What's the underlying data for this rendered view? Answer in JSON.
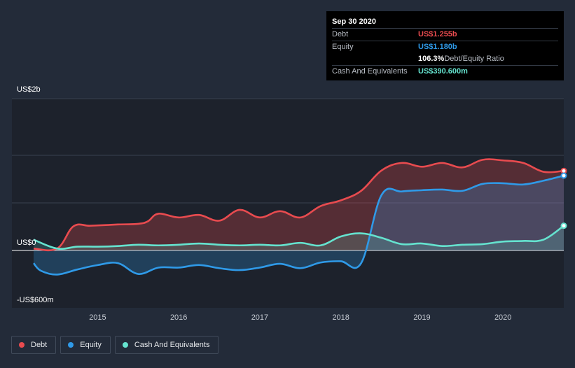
{
  "colors": {
    "debt": "#e84b4f",
    "equity": "#2f9ae8",
    "cash": "#65e3cf",
    "background": "#232b39",
    "plot_background": "#1d222c"
  },
  "tooltip": {
    "date": "Sep 30 2020",
    "rows": [
      {
        "label": "Debt",
        "value": "US$1.255b",
        "color": "#e84b4f"
      },
      {
        "label": "Equity",
        "value": "US$1.180b",
        "color": "#2f9ae8"
      },
      {
        "label": "",
        "value": "106.3%",
        "suffix": " Debt/Equity Ratio",
        "color": "#ffffff"
      },
      {
        "label": "Cash And Equivalents",
        "value": "US$390.600m",
        "color": "#65e3cf"
      }
    ]
  },
  "legend": [
    {
      "label": "Debt",
      "color": "#e84b4f"
    },
    {
      "label": "Equity",
      "color": "#2f9ae8"
    },
    {
      "label": "Cash And Equivalents",
      "color": "#65e3cf"
    }
  ],
  "chart_data": {
    "type": "area",
    "y_tick_labels": [
      "US$2b",
      "US$0",
      "-US$600m"
    ],
    "y_ticks": [
      2000,
      0,
      -600
    ],
    "ylim": [
      -600,
      1600
    ],
    "xlim": [
      2014.21,
      2020.75
    ],
    "x_tick_labels": [
      "2015",
      "2016",
      "2017",
      "2018",
      "2019",
      "2020"
    ],
    "x_ticks": [
      2015,
      2016,
      2017,
      2018,
      2019,
      2020
    ],
    "grid": true,
    "legend_position": "bottom-left",
    "series": [
      {
        "name": "Debt",
        "x": [
          2014.21,
          2014.5,
          2014.7,
          2014.9,
          2015.1,
          2015.25,
          2015.5,
          2015.62,
          2015.75,
          2016.0,
          2016.25,
          2016.5,
          2016.75,
          2017.0,
          2017.25,
          2017.5,
          2017.75,
          2018.0,
          2018.25,
          2018.5,
          2018.75,
          2019.0,
          2019.25,
          2019.5,
          2019.75,
          2020.0,
          2020.25,
          2020.5,
          2020.75
        ],
        "values": [
          30,
          30,
          380,
          390,
          400,
          410,
          420,
          460,
          580,
          520,
          560,
          470,
          640,
          520,
          620,
          520,
          700,
          790,
          940,
          1260,
          1380,
          1320,
          1380,
          1310,
          1430,
          1420,
          1380,
          1240,
          1255
        ]
      },
      {
        "name": "Equity",
        "x": [
          2014.21,
          2014.3,
          2014.5,
          2014.75,
          2015.0,
          2015.25,
          2015.5,
          2015.75,
          2016.0,
          2016.25,
          2016.5,
          2016.75,
          2017.0,
          2017.25,
          2017.5,
          2017.75,
          2018.0,
          2018.25,
          2018.5,
          2018.75,
          2019.0,
          2019.25,
          2019.5,
          2019.75,
          2020.0,
          2020.25,
          2020.5,
          2020.75
        ],
        "values": [
          -200,
          -320,
          -380,
          -300,
          -230,
          -200,
          -370,
          -270,
          -270,
          -230,
          -280,
          -310,
          -270,
          -210,
          -280,
          -190,
          -170,
          -200,
          870,
          930,
          950,
          960,
          940,
          1050,
          1060,
          1040,
          1100,
          1180
        ]
      },
      {
        "name": "Cash And Equivalents",
        "x": [
          2014.21,
          2014.5,
          2014.75,
          2015.0,
          2015.25,
          2015.5,
          2015.75,
          2016.0,
          2016.25,
          2016.5,
          2016.75,
          2017.0,
          2017.25,
          2017.5,
          2017.75,
          2018.0,
          2018.25,
          2018.5,
          2018.75,
          2019.0,
          2019.25,
          2019.5,
          2019.75,
          2020.0,
          2020.25,
          2020.5,
          2020.75
        ],
        "values": [
          170,
          30,
          60,
          60,
          70,
          90,
          80,
          90,
          110,
          90,
          80,
          90,
          80,
          120,
          80,
          220,
          270,
          200,
          100,
          110,
          70,
          90,
          100,
          140,
          150,
          170,
          390
        ]
      }
    ]
  }
}
